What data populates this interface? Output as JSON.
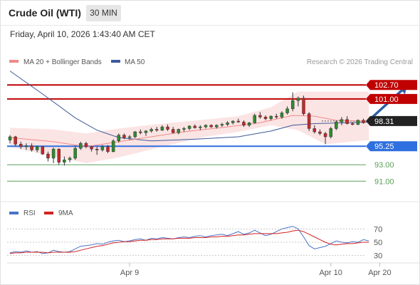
{
  "header": {
    "title": "Crude Oil (WTI)",
    "timeframe": "30 MIN",
    "datetime": "Friday, April 10, 2026 1:43:40 AM CET"
  },
  "legend": {
    "ma20_label": "MA 20 + Bollinger Bands",
    "ma50_label": "MA 50",
    "credit": "Research © 2026 Trading Central",
    "rsi_label": "RSI",
    "rsi_ma_label": "9MA"
  },
  "colors": {
    "up": "#2e8b2e",
    "down": "#c62828",
    "bollinger_fill": "#fbe4e4",
    "ma20": "#f08a8a",
    "ma50": "#3d5a99",
    "resistance": "#c00000",
    "current": "#222222",
    "support_primary": "#2f6fe0",
    "support_secondary": "#5aa05a",
    "arrow": "#2d5fa8",
    "rsi": "#4a72c8",
    "rsi_ma": "#d22222"
  },
  "chart_data": [
    {
      "type": "candlestick",
      "title": "Crude Oil (WTI)",
      "ylim": [
        88.6,
        104.8
      ],
      "xlim": [
        0,
        72
      ],
      "x_ticks": [
        {
          "x": 22,
          "label": "Apr 9"
        },
        {
          "x": 59,
          "label": "Apr 10"
        },
        {
          "x": 68,
          "label": "Apr 20"
        }
      ],
      "ohlc": [
        [
          96.0,
          96.6,
          95.6,
          96.4
        ],
        [
          96.4,
          96.5,
          95.3,
          95.5
        ],
        [
          95.5,
          95.8,
          94.9,
          95.2
        ],
        [
          95.2,
          95.6,
          94.8,
          95.3
        ],
        [
          95.3,
          95.6,
          94.6,
          94.8
        ],
        [
          94.8,
          95.3,
          94.5,
          95.2
        ],
        [
          95.2,
          95.3,
          94.2,
          94.3
        ],
        [
          94.3,
          94.6,
          93.4,
          93.8
        ],
        [
          93.8,
          95.1,
          93.2,
          94.9
        ],
        [
          94.9,
          95.0,
          93.0,
          93.3
        ],
        [
          93.3,
          94.0,
          92.9,
          93.6
        ],
        [
          93.6,
          94.0,
          93.3,
          93.8
        ],
        [
          93.8,
          95.3,
          93.6,
          95.0
        ],
        [
          95.0,
          95.8,
          94.8,
          95.6
        ],
        [
          95.6,
          95.8,
          95.0,
          95.2
        ],
        [
          95.2,
          95.3,
          94.6,
          94.9
        ],
        [
          94.9,
          95.2,
          94.2,
          94.8
        ],
        [
          94.8,
          95.4,
          94.6,
          95.2
        ],
        [
          95.2,
          95.4,
          94.4,
          94.6
        ],
        [
          94.6,
          96.1,
          94.5,
          95.9
        ],
        [
          95.9,
          96.8,
          95.7,
          96.6
        ],
        [
          96.6,
          96.8,
          96.1,
          96.3
        ],
        [
          96.3,
          96.6,
          96.0,
          96.4
        ],
        [
          96.4,
          97.1,
          96.2,
          97.0
        ],
        [
          97.0,
          97.3,
          96.7,
          96.9
        ],
        [
          96.9,
          97.2,
          96.5,
          97.1
        ],
        [
          97.1,
          97.5,
          96.9,
          97.3
        ],
        [
          97.3,
          97.6,
          97.0,
          97.2
        ],
        [
          97.2,
          97.8,
          97.1,
          97.6
        ],
        [
          97.6,
          97.9,
          97.1,
          97.3
        ],
        [
          97.3,
          97.6,
          96.8,
          96.9
        ],
        [
          96.9,
          97.4,
          96.7,
          97.3
        ],
        [
          97.3,
          97.6,
          97.0,
          97.4
        ],
        [
          97.4,
          97.8,
          97.2,
          97.7
        ],
        [
          97.7,
          97.9,
          97.4,
          97.5
        ],
        [
          97.5,
          97.8,
          97.2,
          97.6
        ],
        [
          97.6,
          97.9,
          97.4,
          97.8
        ],
        [
          97.8,
          97.9,
          97.5,
          97.6
        ],
        [
          97.6,
          97.9,
          97.4,
          97.8
        ],
        [
          97.8,
          98.1,
          97.6,
          97.9
        ],
        [
          97.9,
          98.3,
          97.7,
          98.1
        ],
        [
          98.1,
          98.4,
          97.9,
          98.3
        ],
        [
          98.3,
          98.6,
          98.1,
          98.2
        ],
        [
          98.2,
          98.4,
          97.6,
          97.8
        ],
        [
          97.8,
          98.2,
          97.6,
          98.1
        ],
        [
          98.1,
          99.2,
          98.0,
          99.0
        ],
        [
          99.0,
          99.4,
          98.6,
          98.8
        ],
        [
          98.8,
          99.0,
          98.4,
          98.6
        ],
        [
          98.6,
          99.0,
          98.4,
          98.9
        ],
        [
          98.9,
          99.2,
          98.6,
          98.8
        ],
        [
          98.8,
          99.5,
          98.6,
          99.3
        ],
        [
          99.3,
          100.1,
          99.1,
          99.8
        ],
        [
          99.8,
          101.8,
          99.5,
          100.8
        ],
        [
          100.8,
          101.3,
          100.1,
          101.1
        ],
        [
          101.1,
          101.4,
          99.0,
          99.2
        ],
        [
          99.2,
          99.4,
          97.1,
          97.4
        ],
        [
          97.4,
          97.8,
          96.8,
          97.0
        ],
        [
          97.0,
          97.3,
          96.6,
          96.8
        ],
        [
          96.8,
          97.0,
          95.5,
          96.4
        ],
        [
          96.4,
          97.6,
          96.2,
          97.4
        ],
        [
          97.4,
          98.4,
          97.2,
          98.2
        ],
        [
          98.2,
          98.8,
          97.8,
          98.5
        ],
        [
          98.5,
          98.9,
          97.9,
          98.0
        ],
        [
          98.0,
          98.2,
          97.8,
          97.9
        ],
        [
          97.9,
          98.5,
          97.8,
          98.4
        ],
        [
          98.4,
          98.6,
          98.0,
          98.1
        ],
        [
          98.1,
          98.7,
          98.0,
          98.5
        ]
      ],
      "ma20": [
        [
          0,
          96.3
        ],
        [
          8,
          95.8
        ],
        [
          14,
          95.2
        ],
        [
          18,
          95.6
        ],
        [
          24,
          96.2
        ],
        [
          32,
          97.0
        ],
        [
          40,
          97.6
        ],
        [
          46,
          98.1
        ],
        [
          52,
          99.0
        ],
        [
          56,
          98.9
        ],
        [
          60,
          98.4
        ],
        [
          66,
          98.3
        ]
      ],
      "bollinger_upper": [
        [
          0,
          97.5
        ],
        [
          8,
          97.3
        ],
        [
          14,
          96.8
        ],
        [
          20,
          97.4
        ],
        [
          28,
          98.0
        ],
        [
          36,
          98.5
        ],
        [
          42,
          98.9
        ],
        [
          48,
          100.0
        ],
        [
          53,
          101.9
        ],
        [
          66,
          101.9
        ]
      ],
      "bollinger_lower": [
        [
          0,
          95.2
        ],
        [
          8,
          94.0
        ],
        [
          14,
          93.2
        ],
        [
          20,
          93.9
        ],
        [
          28,
          95.2
        ],
        [
          36,
          96.4
        ],
        [
          42,
          97.0
        ],
        [
          48,
          97.8
        ],
        [
          53,
          97.2
        ],
        [
          58,
          95.5
        ],
        [
          66,
          96.0
        ]
      ],
      "ma50": [
        [
          0,
          104.4
        ],
        [
          6,
          101.6
        ],
        [
          12,
          98.7
        ],
        [
          16,
          97.2
        ],
        [
          20,
          96.3
        ],
        [
          26,
          95.9
        ],
        [
          34,
          96.1
        ],
        [
          42,
          96.4
        ],
        [
          48,
          97.1
        ],
        [
          52,
          97.8
        ],
        [
          56,
          98.0
        ],
        [
          62,
          98.1
        ],
        [
          66,
          98.2
        ]
      ],
      "levels": [
        {
          "label": "102.70",
          "value": 102.7,
          "style": "resistance"
        },
        {
          "label": "101.00",
          "value": 101.0,
          "style": "resistance"
        },
        {
          "label": "98.31",
          "value": 98.31,
          "style": "current"
        },
        {
          "label": "95.25",
          "value": 95.25,
          "style": "support_primary"
        },
        {
          "label": "93.00",
          "value": 93.0,
          "style": "support_secondary"
        },
        {
          "label": "91.00",
          "value": 91.0,
          "style": "support_secondary"
        }
      ],
      "arrow": {
        "from": [
          66,
          98.4
        ],
        "to": [
          73,
          102.6
        ]
      }
    },
    {
      "type": "line",
      "ylim": [
        20,
        80
      ],
      "y_ticks": [
        30,
        50,
        70
      ],
      "series": [
        {
          "name": "RSI",
          "values": [
            34,
            36,
            35,
            37,
            35,
            36,
            33,
            34,
            38,
            36,
            35,
            36,
            40,
            44,
            45,
            46,
            48,
            47,
            50,
            52,
            53,
            51,
            52,
            54,
            55,
            53,
            56,
            55,
            57,
            56,
            55,
            57,
            58,
            57,
            59,
            60,
            58,
            60,
            61,
            62,
            60,
            63,
            66,
            62,
            64,
            68,
            64,
            60,
            62,
            66,
            70,
            72,
            74,
            70,
            58,
            45,
            40,
            42,
            44,
            48,
            52,
            50,
            49,
            51,
            50,
            54,
            52
          ]
        },
        {
          "name": "9MA",
          "values": [
            33,
            34,
            34,
            35,
            35,
            35,
            35,
            34,
            35,
            35,
            35,
            35,
            36,
            38,
            40,
            42,
            44,
            45,
            47,
            49,
            50,
            51,
            51,
            52,
            53,
            53,
            54,
            54,
            55,
            55,
            55,
            56,
            56,
            56,
            57,
            57,
            57,
            58,
            58,
            59,
            59,
            60,
            61,
            61,
            62,
            63,
            63,
            63,
            63,
            63,
            64,
            65,
            67,
            68,
            66,
            62,
            58,
            54,
            50,
            47,
            46,
            47,
            48,
            48,
            49,
            50,
            50
          ]
        }
      ]
    }
  ]
}
